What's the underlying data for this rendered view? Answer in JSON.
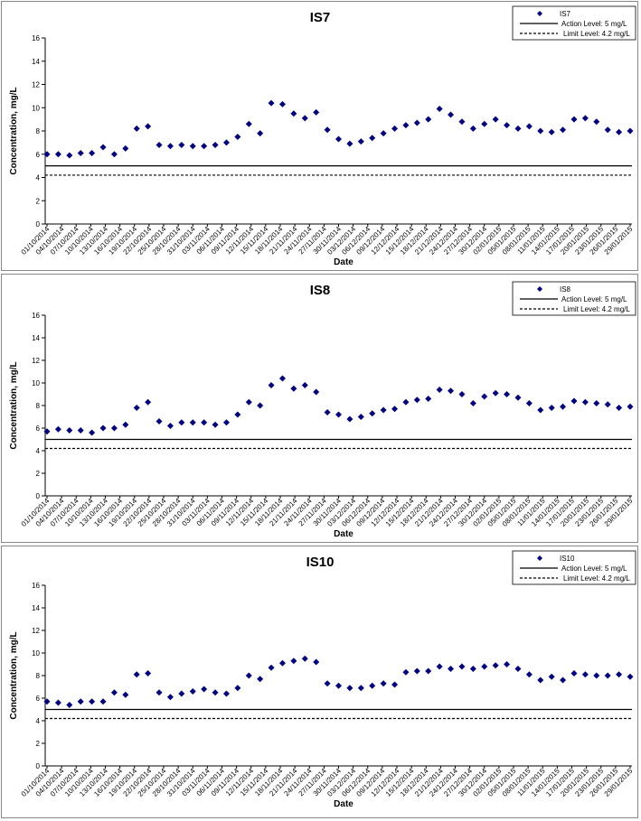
{
  "chart_data": [
    {
      "type": "scatter",
      "title": "IS7",
      "xlabel": "Date",
      "ylabel": "Concentration, mg/L",
      "ylim": [
        0,
        16
      ],
      "yticks": [
        0,
        2,
        4,
        6,
        8,
        10,
        12,
        14,
        16
      ],
      "legend_position": "top-right",
      "grid": false,
      "x_tick_labels": [
        "01/10/2014",
        "04/10/2014",
        "07/10/2014",
        "10/10/2014",
        "13/10/2014",
        "16/10/2014",
        "19/10/2014",
        "22/10/2014",
        "25/10/2014",
        "28/10/2014",
        "31/10/2014",
        "03/11/2014",
        "06/11/2014",
        "09/11/2014",
        "12/11/2014",
        "15/11/2014",
        "18/11/2014",
        "21/11/2014",
        "24/11/2014",
        "27/11/2014",
        "30/11/2014",
        "03/12/2014",
        "06/12/2014",
        "09/12/2014",
        "12/12/2014",
        "15/12/2014",
        "18/12/2014",
        "21/12/2014",
        "24/12/2014",
        "27/12/2014",
        "30/12/2014",
        "02/01/2015",
        "05/01/2015",
        "08/01/2015",
        "11/01/2015",
        "14/01/2015",
        "17/01/2015",
        "20/01/2015",
        "23/01/2015",
        "26/01/2015",
        "29/01/2015"
      ],
      "series": [
        {
          "name": "IS7",
          "color": "#000080",
          "marker": "diamond",
          "values": [
            6.0,
            6.0,
            5.9,
            6.1,
            6.1,
            6.6,
            6.0,
            6.5,
            8.2,
            8.4,
            6.8,
            6.7,
            6.8,
            6.7,
            6.7,
            6.8,
            7.0,
            7.5,
            8.6,
            7.8,
            10.4,
            10.3,
            9.5,
            9.1,
            9.6,
            8.1,
            7.3,
            6.9,
            7.1,
            7.4,
            7.8,
            8.2,
            8.5,
            8.7,
            9.0,
            9.9,
            9.4,
            8.8,
            8.2,
            8.6,
            9.0,
            8.5,
            8.2,
            8.4,
            8.0,
            7.9,
            8.1,
            9.0,
            9.1,
            8.8,
            8.1,
            7.9,
            8.0
          ]
        }
      ],
      "reference_lines": [
        {
          "name": "Action Level: 5 mg/L",
          "value": 5,
          "style": "solid"
        },
        {
          "name": "Limit Level: 4.2 mg/L",
          "value": 4.2,
          "style": "dashed"
        }
      ]
    },
    {
      "type": "scatter",
      "title": "IS8",
      "xlabel": "Date",
      "ylabel": "Concentration, mg/L",
      "ylim": [
        0,
        16
      ],
      "yticks": [
        0,
        2,
        4,
        6,
        8,
        10,
        12,
        14,
        16
      ],
      "legend_position": "top-right",
      "grid": false,
      "x_tick_labels": [
        "01/10/2014",
        "04/10/2014",
        "07/10/2014",
        "10/10/2014",
        "13/10/2014",
        "16/10/2014",
        "19/10/2014",
        "22/10/2014",
        "25/10/2014",
        "28/10/2014",
        "31/10/2014",
        "03/11/2014",
        "06/11/2014",
        "09/11/2014",
        "12/11/2014",
        "15/11/2014",
        "18/11/2014",
        "21/11/2014",
        "24/11/2014",
        "27/11/2014",
        "30/11/2014",
        "03/12/2014",
        "06/12/2014",
        "09/12/2014",
        "12/12/2014",
        "15/12/2014",
        "18/12/2014",
        "21/12/2014",
        "24/12/2014",
        "27/12/2014",
        "30/12/2014",
        "02/01/2015",
        "05/01/2015",
        "08/01/2015",
        "11/01/2015",
        "14/01/2015",
        "17/01/2015",
        "20/01/2015",
        "23/01/2015",
        "26/01/2015",
        "29/01/2015"
      ],
      "series": [
        {
          "name": "IS8",
          "color": "#000080",
          "marker": "diamond",
          "values": [
            5.7,
            5.9,
            5.8,
            5.8,
            5.6,
            6.0,
            6.0,
            6.3,
            7.8,
            8.3,
            6.6,
            6.2,
            6.5,
            6.5,
            6.5,
            6.3,
            6.5,
            7.2,
            8.3,
            8.0,
            9.8,
            10.4,
            9.5,
            9.8,
            9.2,
            7.4,
            7.2,
            6.8,
            7.0,
            7.3,
            7.6,
            7.7,
            8.3,
            8.5,
            8.6,
            9.4,
            9.3,
            9.0,
            8.2,
            8.8,
            9.1,
            9.0,
            8.7,
            8.2,
            7.6,
            7.8,
            7.9,
            8.4,
            8.3,
            8.2,
            8.1,
            7.8,
            7.9
          ]
        }
      ],
      "reference_lines": [
        {
          "name": "Action Level: 5 mg/L",
          "value": 5,
          "style": "solid"
        },
        {
          "name": "Limit Level: 4.2 mg/L",
          "value": 4.2,
          "style": "dashed"
        }
      ]
    },
    {
      "type": "scatter",
      "title": "IS10",
      "xlabel": "Date",
      "ylabel": "Concentration, mg/L",
      "ylim": [
        0,
        16
      ],
      "yticks": [
        0,
        2,
        4,
        6,
        8,
        10,
        12,
        14,
        16
      ],
      "legend_position": "top-right",
      "grid": false,
      "x_tick_labels": [
        "01/10/2014",
        "04/10/2014",
        "07/10/2014",
        "10/10/2014",
        "13/10/2014",
        "16/10/2014",
        "19/10/2014",
        "22/10/2014",
        "25/10/2014",
        "28/10/2014",
        "31/10/2014",
        "03/11/2014",
        "06/11/2014",
        "09/11/2014",
        "12/11/2014",
        "15/11/2014",
        "18/11/2014",
        "21/11/2014",
        "24/11/2014",
        "27/11/2014",
        "30/11/2014",
        "03/12/2014",
        "06/12/2014",
        "09/12/2014",
        "12/12/2014",
        "15/12/2014",
        "18/12/2014",
        "21/12/2014",
        "24/12/2014",
        "27/12/2014",
        "30/12/2014",
        "02/01/2015",
        "05/01/2015",
        "08/01/2015",
        "11/01/2015",
        "14/01/2015",
        "17/01/2015",
        "20/01/2015",
        "23/01/2015",
        "26/01/2015",
        "29/01/2015"
      ],
      "series": [
        {
          "name": "IS10",
          "color": "#000080",
          "marker": "diamond",
          "values": [
            5.7,
            5.6,
            5.4,
            5.7,
            5.7,
            5.7,
            6.5,
            6.3,
            8.1,
            8.2,
            6.5,
            6.1,
            6.4,
            6.6,
            6.8,
            6.5,
            6.4,
            6.9,
            8.0,
            7.7,
            8.7,
            9.1,
            9.3,
            9.5,
            9.2,
            7.3,
            7.1,
            6.9,
            6.9,
            7.1,
            7.3,
            7.2,
            8.3,
            8.4,
            8.4,
            8.8,
            8.6,
            8.8,
            8.6,
            8.8,
            8.9,
            9.0,
            8.6,
            8.1,
            7.6,
            7.9,
            7.6,
            8.2,
            8.1,
            8.0,
            8.0,
            8.1,
            7.9
          ]
        }
      ],
      "reference_lines": [
        {
          "name": "Action Level: 5 mg/L",
          "value": 5,
          "style": "solid"
        },
        {
          "name": "Limit Level: 4.2 mg/L",
          "value": 4.2,
          "style": "dashed"
        }
      ]
    }
  ]
}
